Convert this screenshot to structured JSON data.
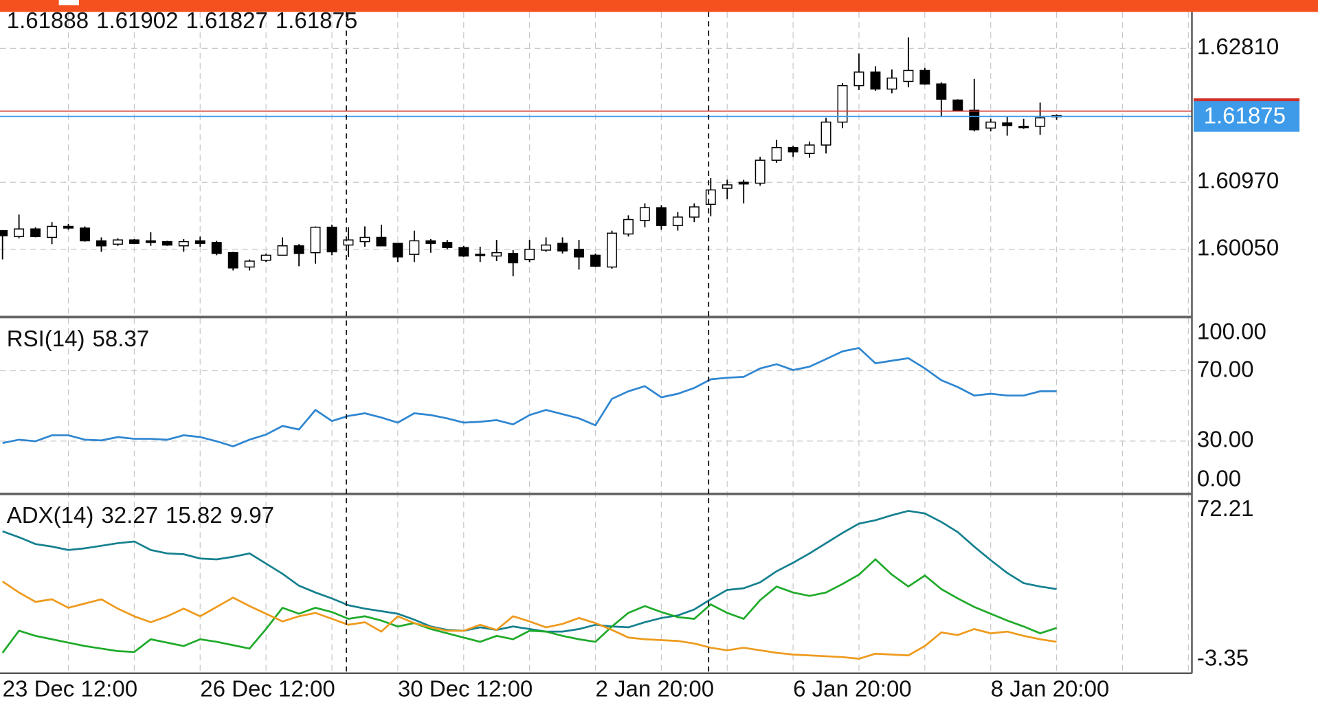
{
  "chart_data": [
    {
      "type": "candlestick",
      "categories": [
        "23 Dec 12:00",
        null,
        null,
        null,
        null,
        null,
        null,
        null,
        null,
        null,
        null,
        null,
        "26 Dec 12:00",
        null,
        null,
        null,
        null,
        null,
        null,
        null,
        null,
        null,
        null,
        null,
        "30 Dec 12:00",
        null,
        null,
        null,
        null,
        null,
        null,
        null,
        null,
        null,
        null,
        null,
        "2 Jan 20:00",
        null,
        null,
        null,
        null,
        null,
        null,
        null,
        null,
        null,
        null,
        null,
        "6 Jan 20:00",
        null,
        null,
        null,
        null,
        null,
        null,
        null,
        null,
        null,
        null,
        null,
        "8 Jan 20:00",
        null,
        null,
        null,
        null
      ],
      "ohlc": [
        [
          1.60306,
          1.60306,
          1.5991,
          1.60236
        ],
        [
          1.60225,
          1.60527,
          1.60201,
          1.60329
        ],
        [
          1.60329,
          1.60353,
          1.60213,
          1.60225
        ],
        [
          1.60213,
          1.60423,
          1.6012,
          1.60364
        ],
        [
          1.60364,
          1.60399,
          1.60318,
          1.60341
        ],
        [
          1.60341,
          1.60364,
          1.60155,
          1.60166
        ],
        [
          1.60166,
          1.60213,
          1.60015,
          1.60097
        ],
        [
          1.6012,
          1.60201,
          1.60097,
          1.60178
        ],
        [
          1.60178,
          1.6019,
          1.6012,
          1.60131
        ],
        [
          1.60166,
          1.60283,
          1.60097,
          1.60143
        ],
        [
          1.60155,
          1.60166,
          1.60097,
          1.60108
        ],
        [
          1.60097,
          1.6019,
          1.60015,
          1.60155
        ],
        [
          1.60166,
          1.60225,
          1.60085,
          1.60131
        ],
        [
          1.60143,
          1.60166,
          1.59968,
          1.59992
        ],
        [
          1.60003,
          1.60015,
          1.59759,
          1.59794
        ],
        [
          1.59806,
          1.5991,
          1.59759,
          1.59887
        ],
        [
          1.59899,
          1.59992,
          1.59875,
          1.59968
        ],
        [
          1.59968,
          1.60213,
          1.59968,
          1.60097
        ],
        [
          1.60097,
          1.6012,
          1.59817,
          1.59992
        ],
        [
          1.60003,
          1.60364,
          1.59852,
          1.60353
        ],
        [
          1.60353,
          1.60388,
          1.59968,
          1.60015
        ],
        [
          1.60108,
          1.60353,
          1.59945,
          1.60178
        ],
        [
          1.60155,
          1.60364,
          1.60085,
          1.60213
        ],
        [
          1.60213,
          1.60388,
          1.60097,
          1.60097
        ],
        [
          1.60131,
          1.60131,
          1.59875,
          1.59945
        ],
        [
          1.5998,
          1.60306,
          1.59875,
          1.60166
        ],
        [
          1.60166,
          1.6019,
          1.60003,
          1.60131
        ],
        [
          1.60143,
          1.60178,
          1.6005,
          1.60073
        ],
        [
          1.60073,
          1.60097,
          1.59945,
          1.59957
        ],
        [
          1.5998,
          1.60085,
          1.59875,
          1.59968
        ],
        [
          1.59957,
          1.60178,
          1.59887,
          1.60003
        ],
        [
          1.59992,
          1.60038,
          1.59678,
          1.59864
        ],
        [
          1.5991,
          1.60178,
          1.59875,
          1.6005
        ],
        [
          1.60038,
          1.60213,
          1.60015,
          1.60108
        ],
        [
          1.60131,
          1.60213,
          1.59992,
          1.60027
        ],
        [
          1.6005,
          1.60178,
          1.59771,
          1.59945
        ],
        [
          1.59968,
          1.59992,
          1.59806,
          1.59817
        ],
        [
          1.59806,
          1.60306,
          1.59783,
          1.60271
        ],
        [
          1.6026,
          1.60516,
          1.60225,
          1.60458
        ],
        [
          1.60446,
          1.60679,
          1.60353,
          1.60621
        ],
        [
          1.60621,
          1.60656,
          1.60318,
          1.60376
        ],
        [
          1.60376,
          1.60562,
          1.60306,
          1.60492
        ],
        [
          1.60492,
          1.60679,
          1.60423,
          1.60632
        ],
        [
          1.60667,
          1.61028,
          1.60504,
          1.60865
        ],
        [
          1.60888,
          1.61005,
          1.60737,
          1.60935
        ],
        [
          1.6097,
          1.61005,
          1.60679,
          1.60947
        ],
        [
          1.60958,
          1.61319,
          1.60923,
          1.61273
        ],
        [
          1.61273,
          1.61552,
          1.61238,
          1.61447
        ],
        [
          1.61447,
          1.61471,
          1.61319,
          1.61389
        ],
        [
          1.61366,
          1.61529,
          1.61308,
          1.61482
        ],
        [
          1.61482,
          1.61855,
          1.61366,
          1.61797
        ],
        [
          1.61797,
          1.62333,
          1.61715,
          1.62298
        ],
        [
          1.62298,
          1.6274,
          1.62239,
          1.62484
        ],
        [
          1.62484,
          1.62565,
          1.62228,
          1.62251
        ],
        [
          1.62251,
          1.62519,
          1.62193,
          1.62402
        ],
        [
          1.62356,
          1.62961,
          1.62274,
          1.62507
        ],
        [
          1.62507,
          1.62542,
          1.62309,
          1.62321
        ],
        [
          1.62321,
          1.62344,
          1.61867,
          1.62111
        ],
        [
          1.621,
          1.62111,
          1.61948,
          1.6196
        ],
        [
          1.6196,
          1.62391,
          1.61669,
          1.61692
        ],
        [
          1.61715,
          1.61843,
          1.61669,
          1.61797
        ],
        [
          1.61785,
          1.61878,
          1.6161,
          1.6175
        ],
        [
          1.61739,
          1.61843,
          1.61704,
          1.61727
        ],
        [
          1.61739,
          1.62065,
          1.61622,
          1.61855
        ],
        [
          1.61888,
          1.61902,
          1.61827,
          1.61875
        ]
      ],
      "ylim": [
        1.5913,
        1.63311
      ],
      "yticks": [
        {
          "value": 1.6005,
          "label": "1.60050"
        },
        {
          "value": 1.6097,
          "label": "1.60970"
        },
        {
          "value": 1.6281,
          "label": "1.62810"
        }
      ],
      "grid": true,
      "up_color": "#ffffff",
      "down_color": "#000000",
      "bid_color": "#3d9be9",
      "ask": 1.61948,
      "ask_color": "#d0302b"
    },
    {
      "type": "line",
      "title": "RSI(14)",
      "color": "#2f86d1",
      "values": [
        28.9,
        30.8,
        29.9,
        33.3,
        33.3,
        30.8,
        30.4,
        32.3,
        31.3,
        31.3,
        30.8,
        33.3,
        32.3,
        29.9,
        27.0,
        30.8,
        33.7,
        38.6,
        36.6,
        47.7,
        41.4,
        44.3,
        45.8,
        43.4,
        40.5,
        45.8,
        44.8,
        42.9,
        40.5,
        41.0,
        41.9,
        39.5,
        44.8,
        47.7,
        45.3,
        42.9,
        39.0,
        54.0,
        58.3,
        61.2,
        54.9,
        56.9,
        60.2,
        65.1,
        66.0,
        66.5,
        71.3,
        73.7,
        70.4,
        72.3,
        76.6,
        81.0,
        82.9,
        74.2,
        75.7,
        77.1,
        71.3,
        64.6,
        60.7,
        55.9,
        56.9,
        55.9,
        55.9,
        58.3,
        58.37
      ],
      "ylim": [
        0,
        100
      ],
      "yticks": [
        {
          "value": 0,
          "label": "0.00"
        },
        {
          "value": 30,
          "label": "30.00"
        },
        {
          "value": 70,
          "label": "70.00"
        },
        {
          "value": 100,
          "label": "100.00"
        }
      ],
      "grid": true
    },
    {
      "type": "line",
      "title": "ADX(14)",
      "series": [
        {
          "color": "#15808f",
          "values": [
            56.74,
            54.22,
            51.34,
            50.26,
            48.82,
            49.54,
            50.62,
            51.7,
            52.42,
            48.82,
            47.38,
            47.02,
            45.22,
            44.86,
            45.94,
            47.38,
            43.07,
            38.75,
            33.71,
            30.83,
            28.31,
            25.44,
            24.0,
            22.92,
            21.84,
            19.32,
            16.44,
            15.0,
            14.64,
            16.08,
            15.0,
            16.44,
            15.36,
            14.28,
            14.28,
            15.36,
            17.16,
            16.44,
            16.08,
            18.24,
            20.04,
            21.12,
            23.64,
            27.95,
            31.91,
            32.63,
            35.15,
            39.83,
            43.43,
            47.38,
            51.7,
            56.02,
            59.98,
            61.42,
            63.57,
            65.37,
            64.29,
            60.7,
            56.38,
            50.26,
            44.51,
            39.11,
            34.79,
            33.35,
            32.27
          ]
        },
        {
          "color": "#1faa2a",
          "values": [
            5.29,
            14.64,
            12.48,
            11.04,
            9.6,
            8.17,
            7.09,
            6.01,
            5.65,
            11.04,
            9.6,
            8.17,
            11.04,
            9.96,
            8.53,
            7.09,
            15.36,
            24.36,
            21.84,
            24.36,
            22.56,
            19.68,
            20.76,
            18.96,
            16.44,
            17.88,
            15.36,
            13.56,
            11.76,
            9.96,
            12.48,
            11.04,
            14.64,
            14.28,
            12.48,
            11.04,
            9.96,
            16.44,
            22.2,
            25.08,
            22.56,
            20.4,
            19.68,
            25.8,
            22.2,
            19.68,
            27.59,
            33.35,
            30.83,
            29.39,
            30.83,
            34.43,
            38.39,
            44.86,
            38.39,
            33.35,
            38.03,
            32.27,
            28.31,
            24.72,
            21.84,
            18.96,
            16.44,
            13.56,
            15.82
          ]
        },
        {
          "color": "#ee9a1c",
          "values": [
            35.51,
            30.83,
            26.88,
            27.95,
            24.36,
            26.16,
            27.95,
            24.0,
            20.76,
            18.24,
            20.76,
            24.0,
            20.76,
            24.72,
            28.67,
            25.08,
            21.84,
            18.6,
            20.76,
            22.2,
            19.68,
            17.16,
            18.24,
            14.28,
            20.76,
            17.88,
            16.08,
            14.64,
            14.64,
            17.16,
            15.0,
            20.76,
            18.6,
            16.08,
            17.52,
            20.04,
            17.88,
            15.0,
            11.76,
            11.04,
            10.68,
            10.32,
            9.24,
            7.45,
            6.37,
            7.45,
            6.37,
            5.29,
            4.57,
            4.21,
            3.85,
            3.49,
            2.77,
            4.93,
            4.57,
            4.21,
            8.17,
            13.92,
            12.84,
            15.36,
            13.56,
            14.28,
            12.48,
            11.04,
            9.97
          ]
        }
      ],
      "ylim": [
        -3.35,
        72.21
      ],
      "yticks": [
        -3.35,
        72.21
      ],
      "grid": false
    }
  ]
}
